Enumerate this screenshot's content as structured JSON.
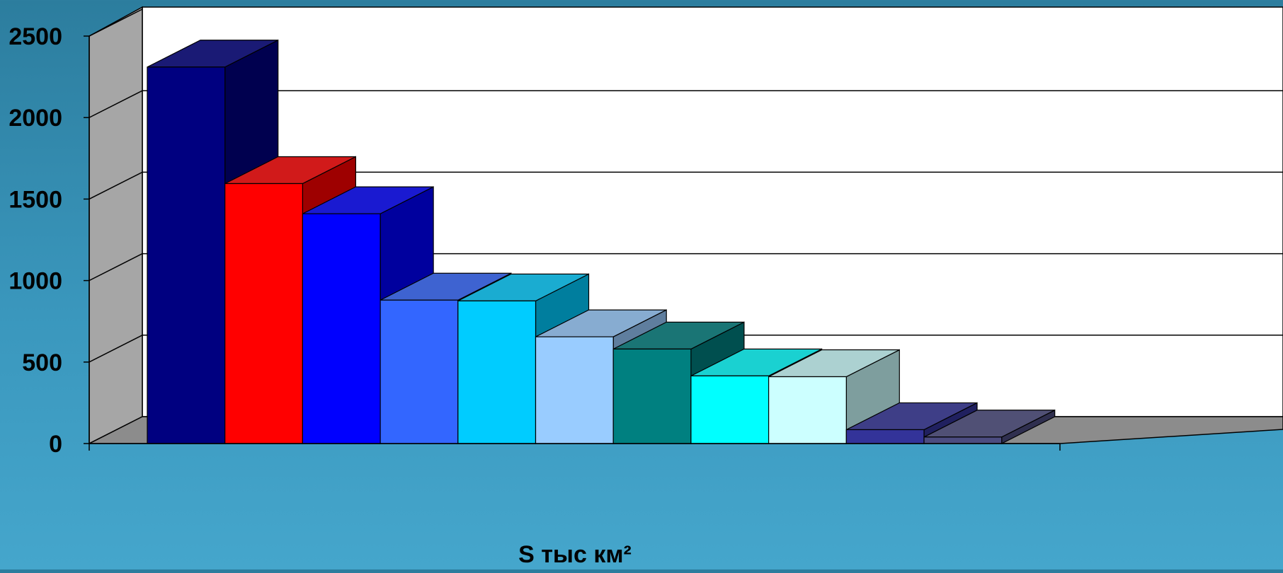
{
  "chart_data": {
    "type": "bar",
    "style": "3d",
    "xlabel": "S тыс км²",
    "ylabel": "",
    "ylim": [
      0,
      2500
    ],
    "yticks": [
      0,
      500,
      1000,
      1500,
      2000,
      2500
    ],
    "grid": true,
    "legend": "none",
    "values": [
      2310,
      1595,
      1410,
      880,
      875,
      655,
      580,
      415,
      410,
      85,
      40
    ],
    "colors": [
      "#000080",
      "#ff0000",
      "#0000ff",
      "#3366ff",
      "#00ccff",
      "#99ccff",
      "#008080",
      "#00ffff",
      "#ccffff",
      "#333399",
      "#4c4c80"
    ]
  },
  "colors": {
    "plot_background": "#ffffff",
    "wall_side": "#a6a6a6",
    "floor": "#8c8c8c",
    "page_background": "#3a97bd"
  }
}
